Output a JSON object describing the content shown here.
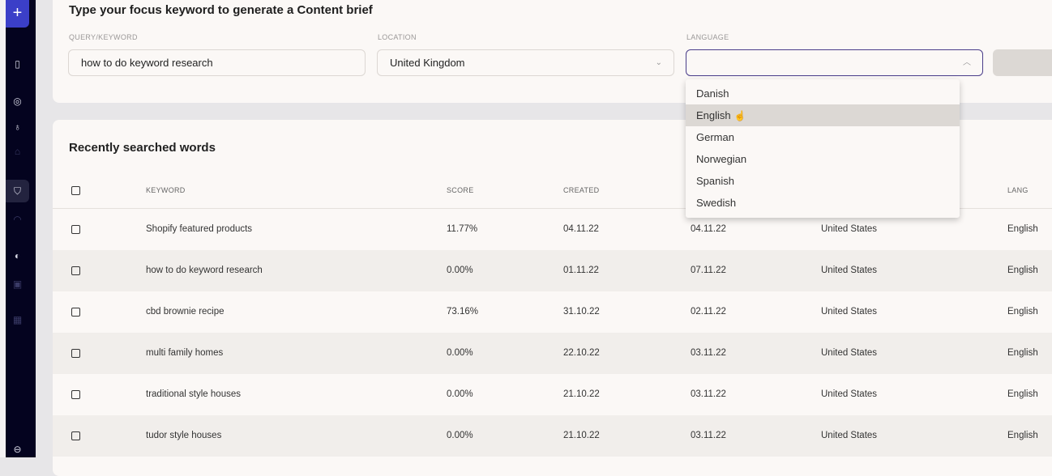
{
  "sidebar": {
    "icons": [
      "plus-icon",
      "document-icon",
      "compass-icon",
      "lightbulb-icon",
      "lock-icon",
      "brief-icon",
      "gauge-icon",
      "toggle-icon",
      "monitor-icon",
      "grid-icon",
      "logout-icon"
    ]
  },
  "form": {
    "title": "Type your focus keyword to generate a Content brief",
    "query_label": "QUERY/KEYWORD",
    "query_value": "how to do keyword research",
    "location_label": "LOCATION",
    "location_value": "United Kingdom",
    "language_label": "LANGUAGE",
    "language_value": ""
  },
  "dropdown": {
    "options": [
      "Danish",
      "English",
      "German",
      "Norwegian",
      "Spanish",
      "Swedish"
    ],
    "highlighted": "English"
  },
  "table": {
    "title": "Recently searched words",
    "headers": {
      "keyword": "KEYWORD",
      "score": "SCORE",
      "created": "CREATED",
      "lang": "LANG"
    },
    "rows": [
      {
        "keyword": "Shopify featured products",
        "score": "11.77%",
        "created": "04.11.22",
        "updated": "04.11.22",
        "location": "United States",
        "lang": "English"
      },
      {
        "keyword": "how to do keyword research",
        "score": "0.00%",
        "created": "01.11.22",
        "updated": "07.11.22",
        "location": "United States",
        "lang": "English"
      },
      {
        "keyword": "cbd brownie recipe",
        "score": "73.16%",
        "created": "31.10.22",
        "updated": "02.11.22",
        "location": "United States",
        "lang": "English"
      },
      {
        "keyword": "multi family homes",
        "score": "0.00%",
        "created": "22.10.22",
        "updated": "03.11.22",
        "location": "United States",
        "lang": "English"
      },
      {
        "keyword": "traditional style houses",
        "score": "0.00%",
        "created": "21.10.22",
        "updated": "03.11.22",
        "location": "United States",
        "lang": "English"
      },
      {
        "keyword": "tudor style houses",
        "score": "0.00%",
        "created": "21.10.22",
        "updated": "03.11.22",
        "location": "United States",
        "lang": "English"
      }
    ]
  }
}
